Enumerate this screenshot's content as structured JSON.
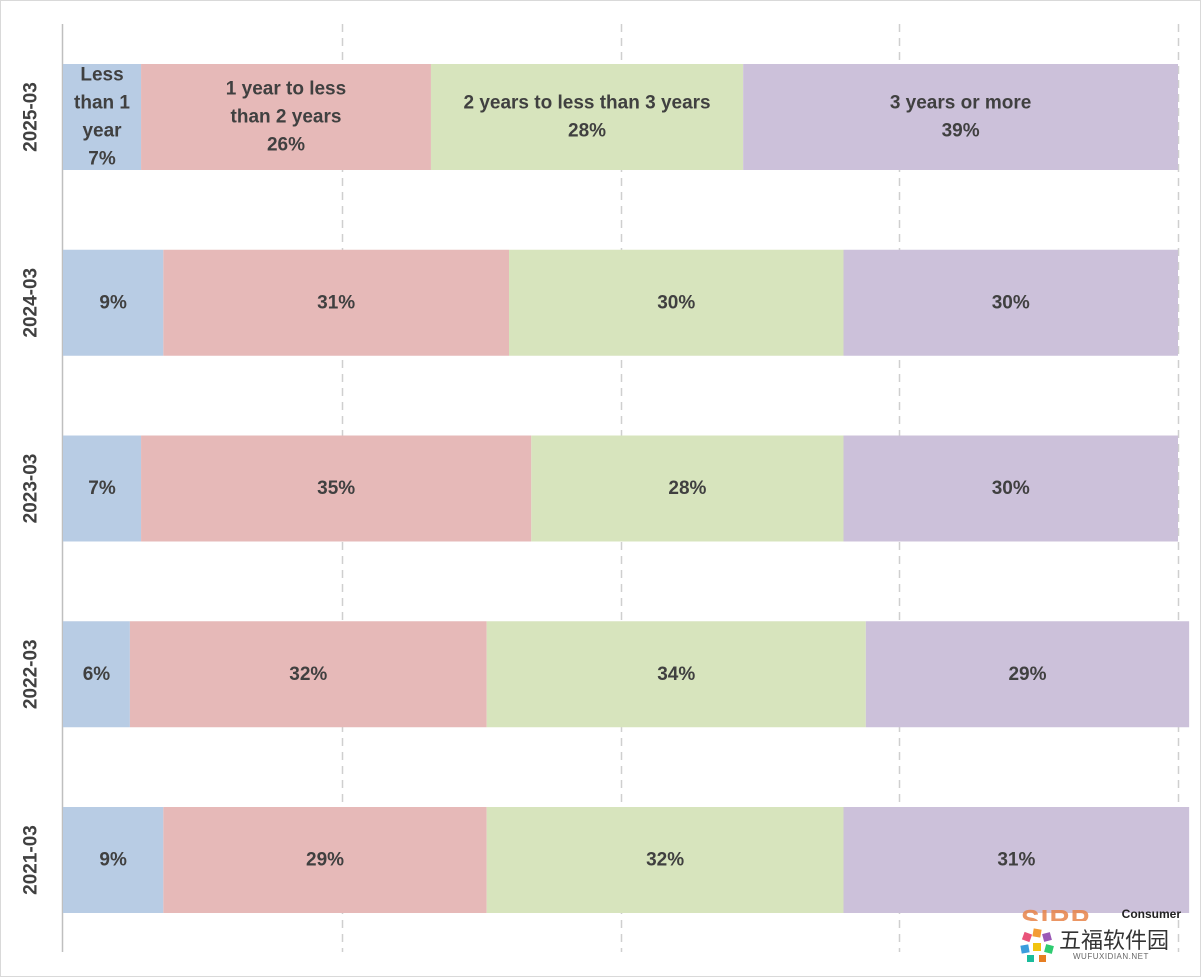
{
  "chart_data": {
    "type": "bar",
    "orientation": "horizontal",
    "stacked": "100%",
    "categories": [
      "2025-03",
      "2024-03",
      "2023-03",
      "2022-03",
      "2021-03"
    ],
    "series": [
      {
        "name": "Less than 1 year",
        "name_lines": [
          "Less",
          "than 1",
          "year"
        ],
        "color": "#b8cce4",
        "values": [
          7,
          9,
          7,
          6,
          9
        ],
        "labels": [
          "7%",
          "9%",
          "7%",
          "6%",
          "9%"
        ]
      },
      {
        "name": "1 year to less than 2 years",
        "name_lines": [
          "1 year to less",
          "than 2 years"
        ],
        "color": "#e6b9b8",
        "values": [
          26,
          31,
          35,
          32,
          29
        ],
        "labels": [
          "26%",
          "31%",
          "35%",
          "32%",
          "29%"
        ]
      },
      {
        "name": "2 years to less than 3 years",
        "name_lines": [
          "2 years to less than 3 years"
        ],
        "color": "#d7e4bd",
        "values": [
          28,
          30,
          28,
          34,
          32
        ],
        "labels": [
          "28%",
          "30%",
          "28%",
          "34%",
          "32%"
        ]
      },
      {
        "name": "3 years or more",
        "name_lines": [
          "3 years or more"
        ],
        "color": "#ccc1da",
        "values": [
          39,
          30,
          30,
          29,
          31
        ],
        "labels": [
          "39%",
          "30%",
          "30%",
          "29%",
          "31%"
        ]
      }
    ],
    "xlim": [
      0,
      100
    ],
    "grid": "vertical dashed",
    "legend": "none",
    "series_names_shown_on": "2025-03"
  },
  "watermark": {
    "brand": "SIRP",
    "tag": "Consumer",
    "site_name": "五福软件园",
    "site_url": "WUFUXIDIAN.NET"
  }
}
